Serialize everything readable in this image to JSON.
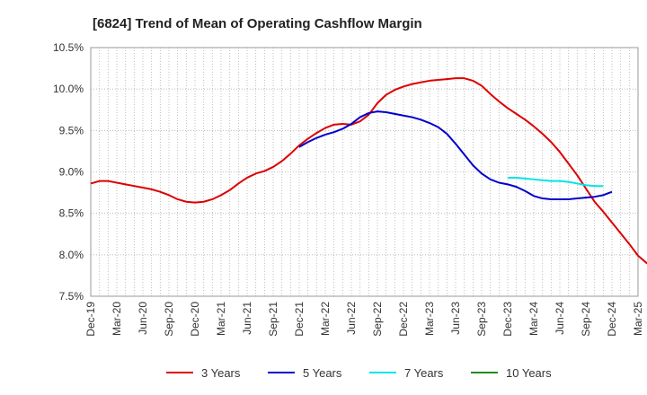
{
  "chart_data": {
    "type": "line",
    "title": "[6824]  Trend of Mean of Operating Cashflow Margin",
    "xlabel": "",
    "ylabel": "",
    "ylim": [
      7.5,
      10.5
    ],
    "yticks": [
      7.5,
      8.0,
      8.5,
      9.0,
      9.5,
      10.0,
      10.5
    ],
    "ytick_labels": [
      "7.5%",
      "8.0%",
      "8.5%",
      "9.0%",
      "9.5%",
      "10.0%",
      "10.5%"
    ],
    "xtick_labels": [
      "Dec-19",
      "Mar-20",
      "Jun-20",
      "Sep-20",
      "Dec-20",
      "Mar-21",
      "Jun-21",
      "Sep-21",
      "Dec-21",
      "Mar-22",
      "Jun-22",
      "Sep-22",
      "Dec-22",
      "Mar-23",
      "Jun-23",
      "Sep-23",
      "Dec-23",
      "Mar-24",
      "Jun-24",
      "Sep-24",
      "Dec-24",
      "Mar-25"
    ],
    "grid": true,
    "legend_position": "bottom",
    "x_start": "Dec-19",
    "x_step": "month",
    "series": [
      {
        "name": "3 Years",
        "color": "#dd0000",
        "start": "Dec-19",
        "values": [
          8.86,
          8.89,
          8.89,
          8.87,
          8.85,
          8.83,
          8.81,
          8.79,
          8.76,
          8.72,
          8.67,
          8.64,
          8.63,
          8.64,
          8.67,
          8.72,
          8.78,
          8.86,
          8.93,
          8.98,
          9.01,
          9.06,
          9.13,
          9.22,
          9.32,
          9.4,
          9.47,
          9.53,
          9.57,
          9.58,
          9.57,
          9.61,
          9.69,
          9.83,
          9.93,
          9.99,
          10.03,
          10.06,
          10.08,
          10.1,
          10.11,
          10.12,
          10.13,
          10.13,
          10.1,
          10.04,
          9.94,
          9.85,
          9.77,
          9.7,
          9.63,
          9.55,
          9.46,
          9.36,
          9.24,
          9.1,
          8.96,
          8.8,
          8.64,
          8.52,
          8.39,
          8.26,
          8.13,
          7.99,
          7.9,
          7.85,
          7.86
        ]
      },
      {
        "name": "5 Years",
        "color": "#0000cc",
        "start": "Dec-21",
        "values": [
          9.3,
          9.36,
          9.41,
          9.45,
          9.48,
          9.52,
          9.58,
          9.66,
          9.71,
          9.73,
          9.72,
          9.7,
          9.68,
          9.66,
          9.63,
          9.59,
          9.54,
          9.46,
          9.34,
          9.21,
          9.08,
          8.98,
          8.91,
          8.87,
          8.85,
          8.82,
          8.77,
          8.71,
          8.68,
          8.67,
          8.67,
          8.67,
          8.68,
          8.69,
          8.7,
          8.72,
          8.76
        ]
      },
      {
        "name": "7 Years",
        "color": "#00e5e5",
        "start": "Dec-23",
        "values": [
          8.93,
          8.93,
          8.92,
          8.91,
          8.9,
          8.89,
          8.89,
          8.88,
          8.86,
          8.84,
          8.83,
          8.83
        ]
      },
      {
        "name": "10 Years",
        "color": "#228b22",
        "start": "Dec-24",
        "values": []
      }
    ]
  }
}
